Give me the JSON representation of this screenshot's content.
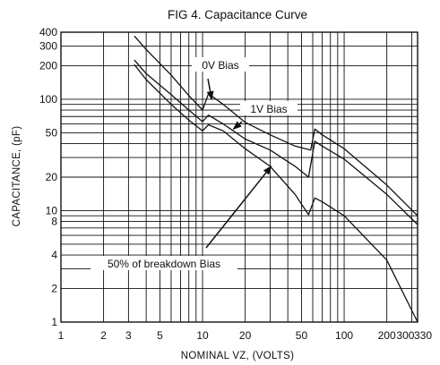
{
  "chart_data": {
    "type": "line",
    "title": "FIG 4. Capacitance Curve",
    "xlabel": "NOMINAL VZ, (VOLTS)",
    "ylabel": "CAPACITANCE, (pF)",
    "x_scale": "log",
    "y_scale": "log",
    "xlim": [
      1,
      330
    ],
    "ylim": [
      1,
      400
    ],
    "grid": true,
    "x_ticks": [
      1,
      2,
      3,
      5,
      10,
      20,
      50,
      100,
      200,
      300,
      330
    ],
    "x_tick_labels": [
      "1",
      "2",
      "3",
      "5",
      "10",
      "20",
      "50",
      "100",
      "200",
      "300",
      "330"
    ],
    "y_ticks": [
      1,
      2,
      4,
      8,
      10,
      20,
      50,
      100,
      200,
      300,
      400
    ],
    "y_tick_labels": [
      "1",
      "2",
      "4",
      "8",
      "10",
      "20",
      "50",
      "100",
      "200",
      "300",
      "400"
    ],
    "series": [
      {
        "name": "0V Bias",
        "x": [
          3.3,
          4,
          6,
          8,
          10,
          11,
          14,
          20,
          30,
          45,
          58,
          62,
          70,
          100,
          200,
          330
        ],
        "y": [
          370,
          280,
          165,
          108,
          80,
          112,
          90,
          62,
          48,
          38,
          35,
          54,
          48,
          36,
          17,
          9
        ]
      },
      {
        "name": "1V Bias",
        "x": [
          3.3,
          4,
          6,
          8,
          10,
          11,
          14,
          20,
          30,
          45,
          56,
          62,
          70,
          100,
          200,
          330
        ],
        "y": [
          225,
          170,
          110,
          80,
          63,
          72,
          60,
          44,
          35,
          25,
          20,
          42,
          38,
          29,
          14,
          7.5
        ]
      },
      {
        "name": "50% of breakdown Bias",
        "x": [
          3.3,
          4,
          6,
          8,
          10,
          11,
          14,
          20,
          30,
          45,
          56,
          62,
          70,
          100,
          200,
          330
        ],
        "y": [
          205,
          150,
          90,
          65,
          52,
          59,
          52,
          36,
          25,
          14,
          9.2,
          13,
          12,
          9,
          3.6,
          1
        ]
      }
    ],
    "annotations": [
      {
        "text": "0V Bias",
        "series": "0V Bias"
      },
      {
        "text": "1V Bias",
        "series": "1V Bias"
      },
      {
        "text": "50% of breakdown Bias",
        "series": "50% of breakdown Bias"
      }
    ]
  }
}
